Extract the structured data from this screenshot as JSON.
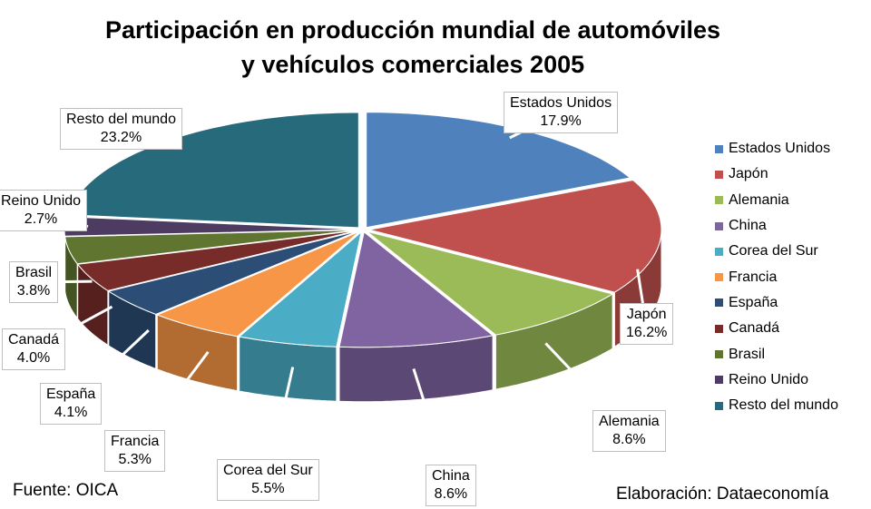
{
  "chart_data": {
    "type": "pie",
    "title_line1": "Participación en producción mundial de automóviles",
    "title_line2": "y vehículos comerciales 2005",
    "slices": [
      {
        "name": "Estados Unidos",
        "value": 17.9,
        "label": "17.9%",
        "color": "#4f81bd"
      },
      {
        "name": "Japón",
        "value": 16.2,
        "label": "16.2%",
        "color": "#c0504d"
      },
      {
        "name": "Alemania",
        "value": 8.6,
        "label": "8.6%",
        "color": "#9bbb59"
      },
      {
        "name": "China",
        "value": 8.6,
        "label": "8.6%",
        "color": "#8064a2"
      },
      {
        "name": "Corea del Sur",
        "value": 5.5,
        "label": "5.5%",
        "color": "#4bacc6"
      },
      {
        "name": "Francia",
        "value": 5.3,
        "label": "5.3%",
        "color": "#f79646"
      },
      {
        "name": "España",
        "value": 4.1,
        "label": "4.1%",
        "color": "#2c4d75"
      },
      {
        "name": "Canadá",
        "value": 4.0,
        "label": "4.0%",
        "color": "#772c2a"
      },
      {
        "name": "Brasil",
        "value": 3.8,
        "label": "3.8%",
        "color": "#5f7530"
      },
      {
        "name": "Reino Unido",
        "value": 2.7,
        "label": "2.7%",
        "color": "#4d3b62"
      },
      {
        "name": "Resto del mundo",
        "value": 23.2,
        "label": "23.2%",
        "color": "#276a7c"
      }
    ],
    "legend_position": "right",
    "exploded": true,
    "three_d": true
  },
  "footer": {
    "source": "Fuente: OICA",
    "credit": "Elaboración: Dataeconomía"
  }
}
